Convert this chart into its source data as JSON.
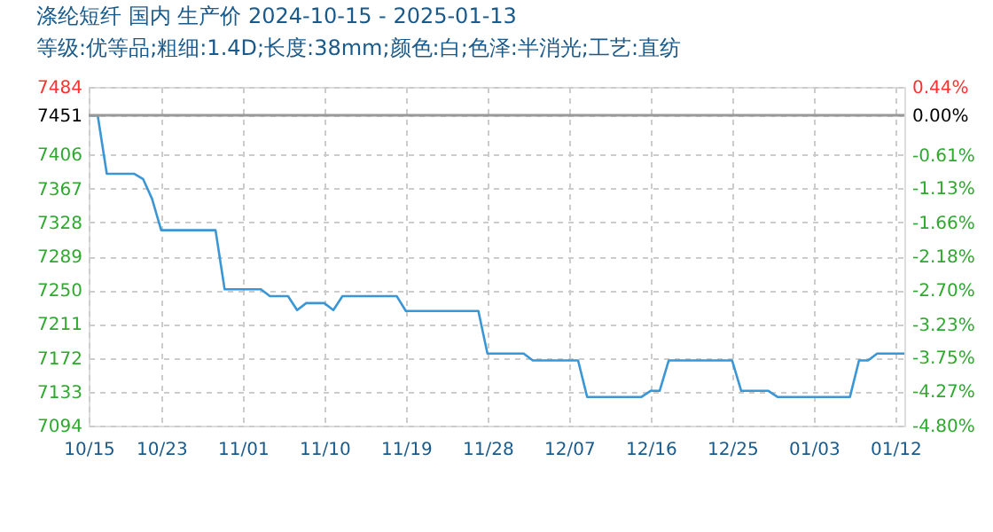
{
  "chart_data": {
    "type": "line",
    "title": "涤纶短纤 国内 生产价 2024-10-15 - 2025-01-13",
    "subtitle": "等级:优等品;粗细:1.4D;长度:38mm;颜色:白;色泽:半消光;工艺:直纺",
    "x": [
      "2024-10-15",
      "2024-10-16",
      "2024-10-17",
      "2024-10-20",
      "2024-10-21",
      "2024-10-22",
      "2024-10-23",
      "2024-10-29",
      "2024-10-30",
      "2024-11-03",
      "2024-11-04",
      "2024-11-06",
      "2024-11-07",
      "2024-11-08",
      "2024-11-10",
      "2024-11-11",
      "2024-11-12",
      "2024-11-18",
      "2024-11-19",
      "2024-11-27",
      "2024-11-28",
      "2024-12-02",
      "2024-12-03",
      "2024-12-08",
      "2024-12-09",
      "2024-12-15",
      "2024-12-16",
      "2024-12-17",
      "2024-12-18",
      "2024-12-25",
      "2024-12-26",
      "2024-12-29",
      "2024-12-30",
      "2025-01-07",
      "2025-01-08",
      "2025-01-09",
      "2025-01-10",
      "2025-01-13"
    ],
    "series": [
      {
        "color": "#3a96d4",
        "values": [
          7451,
          7451,
          7384,
          7384,
          7378,
          7355,
          7319,
          7319,
          7251,
          7251,
          7243,
          7243,
          7227,
          7235,
          7235,
          7227,
          7243,
          7243,
          7226,
          7226,
          7177,
          7177,
          7169,
          7169,
          7127,
          7127,
          7134,
          7134,
          7169,
          7169,
          7134,
          7134,
          7127,
          7127,
          7169,
          7169,
          7177,
          7177
        ]
      }
    ],
    "xlim": [
      "2024-10-15",
      "2025-01-13"
    ],
    "xticks": [
      {
        "value": "2024-10-15",
        "label": "10/15"
      },
      {
        "value": "2024-10-23",
        "label": "10/23"
      },
      {
        "value": "2024-11-01",
        "label": "11/01"
      },
      {
        "value": "2024-11-10",
        "label": "11/10"
      },
      {
        "value": "2024-11-19",
        "label": "11/19"
      },
      {
        "value": "2024-11-28",
        "label": "11/28"
      },
      {
        "value": "2024-12-07",
        "label": "12/07"
      },
      {
        "value": "2024-12-16",
        "label": "12/16"
      },
      {
        "value": "2024-12-25",
        "label": "12/25"
      },
      {
        "value": "2025-01-03",
        "label": "01/03"
      },
      {
        "value": "2025-01-12",
        "label": "01/12"
      }
    ],
    "ylim": [
      7094,
      7484
    ],
    "yticks": [
      7094,
      7133,
      7172,
      7211,
      7250,
      7289,
      7328,
      7367,
      7406,
      7451,
      7484
    ],
    "y2lim": [
      -4.8,
      0.44
    ],
    "y2ticks": [
      {
        "value": -4.8,
        "label": "-4.80%"
      },
      {
        "value": -4.27,
        "label": "-4.27%"
      },
      {
        "value": -3.75,
        "label": "-3.75%"
      },
      {
        "value": -3.23,
        "label": "-3.23%"
      },
      {
        "value": -2.7,
        "label": "-2.70%"
      },
      {
        "value": -2.18,
        "label": "-2.18%"
      },
      {
        "value": -1.66,
        "label": "-1.66%"
      },
      {
        "value": -1.13,
        "label": "-1.13%"
      },
      {
        "value": -0.61,
        "label": "-0.61%"
      },
      {
        "value": 0.0,
        "label": "0.00%"
      },
      {
        "value": 0.44,
        "label": "0.44%"
      }
    ],
    "ref_lines": [
      {
        "axis": "y2",
        "value": 0,
        "color": "#999999"
      }
    ],
    "grid": true,
    "marker": "none",
    "line_style": "solid"
  }
}
